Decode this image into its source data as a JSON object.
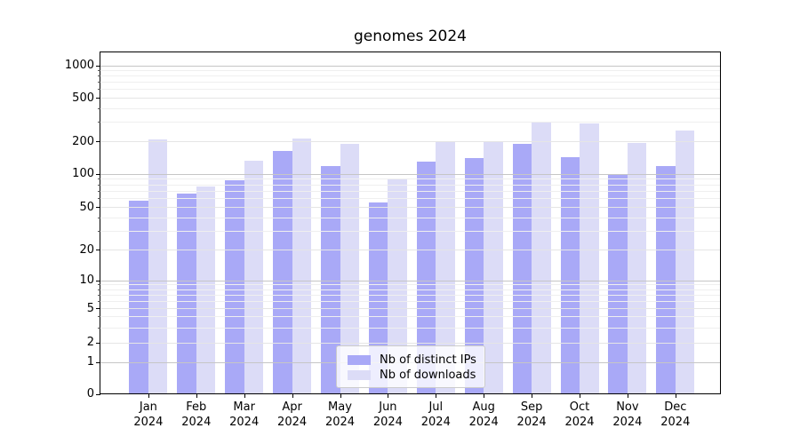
{
  "chart_data": {
    "type": "bar",
    "title": "genomes 2024",
    "categories": [
      "Jan 2024",
      "Feb 2024",
      "Mar 2024",
      "Apr 2024",
      "May 2024",
      "Jun 2024",
      "Jul 2024",
      "Aug 2024",
      "Sep 2024",
      "Oct 2024",
      "Nov 2024",
      "Dec 2024"
    ],
    "series": [
      {
        "name": "Nb of distinct IPs",
        "color": "#a9a9f7",
        "values": [
          57,
          66,
          88,
          162,
          118,
          55,
          130,
          139,
          190,
          142,
          99,
          117
        ]
      },
      {
        "name": "Nb of downloads",
        "color": "#dcdcf7",
        "values": [
          208,
          77,
          131,
          213,
          190,
          89,
          198,
          196,
          300,
          292,
          194,
          249
        ]
      }
    ],
    "y_scale": "symlog",
    "y_ticks": [
      0,
      1,
      2,
      5,
      10,
      20,
      50,
      100,
      200,
      500,
      1000
    ],
    "ylim": [
      0,
      1300
    ],
    "xlabel": "",
    "ylabel": "",
    "grid": true,
    "legend_position": "lower center"
  }
}
